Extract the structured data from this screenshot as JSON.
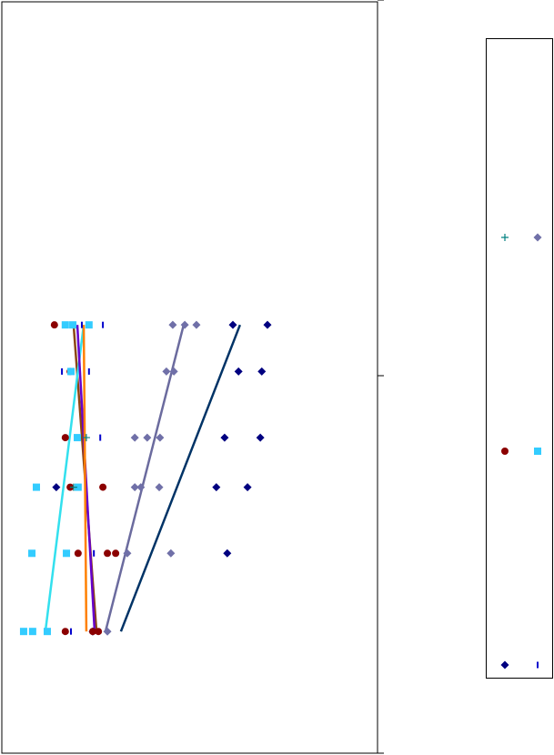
{
  "chart_data": {
    "type": "scatter",
    "xlim": [
      0,
      100
    ],
    "ylim": [
      0,
      100
    ],
    "series": [
      {
        "color": "#000080",
        "marker": "diamond",
        "x": [
          24.2,
          60.0,
          14.5,
          57.1,
          65.4,
          59.3,
          68.8,
          63.0,
          69.2,
          61.5,
          70.7
        ],
        "values": [
          16.2,
          26.6,
          35.4,
          35.4,
          35.4,
          42.0,
          42.0,
          50.8,
          50.8,
          57.0,
          57.0
        ],
        "trend_color": "#003366",
        "trend_x": [
          31.7,
          63.4
        ],
        "trend_y": [
          16.2,
          57.0
        ]
      },
      {
        "color": "#7070a8",
        "marker": "diamond",
        "x": [
          28.1,
          33.4,
          45.0,
          35.4,
          37.0,
          41.9,
          35.4,
          38.7,
          42.1,
          43.8,
          45.8,
          45.5,
          48.7,
          51.8
        ],
        "values": [
          16.2,
          26.6,
          26.6,
          35.4,
          35.4,
          35.4,
          42.0,
          42.0,
          42.0,
          50.8,
          50.8,
          57.0,
          57.0,
          57.0
        ],
        "trend_color": "#6b6b9e",
        "trend_x": [
          27.6,
          48.4
        ],
        "trend_y": [
          16.2,
          57.0
        ]
      },
      {
        "color": "#8b0000",
        "marker": "circle",
        "x": [
          16.9,
          24.2,
          25.7,
          20.3,
          28.1,
          30.3,
          18.2,
          26.9,
          16.9,
          18.2,
          14.0
        ],
        "values": [
          16.2,
          16.2,
          16.2,
          26.6,
          26.6,
          26.6,
          35.4,
          35.4,
          42.0,
          50.8,
          57.0
        ],
        "trend_color": "#8b4513",
        "trend_x": [
          25.2,
          19.1
        ],
        "trend_y": [
          16.2,
          57.0
        ]
      },
      {
        "color": "#33ccff",
        "marker": "square",
        "x": [
          5.8,
          8.2,
          12.1,
          8.0,
          17.2,
          9.2,
          20.3,
          20.1,
          18.4,
          16.9,
          18.9,
          23.2
        ],
        "values": [
          16.2,
          16.2,
          16.2,
          26.6,
          26.6,
          35.4,
          35.4,
          42.0,
          50.8,
          57.0,
          57.0,
          57.0
        ],
        "trend_color": "#33e0ee",
        "trend_x": [
          11.6,
          21.8
        ],
        "trend_y": [
          16.2,
          57.0
        ]
      },
      {
        "color": "#0000cc",
        "marker": "dash",
        "x": [
          18.4,
          24.5,
          26.2,
          16.0,
          23.2,
          21.3,
          26.9
        ],
        "values": [
          16.2,
          26.6,
          42.0,
          50.8,
          50.8,
          57.0,
          57.0
        ],
        "trend_color": "#6600cc",
        "trend_x": [
          24.7,
          20.1
        ],
        "trend_y": [
          16.2,
          57.0
        ]
      },
      {
        "color": "#008080",
        "marker": "plus",
        "x": [
          19.1,
          22.5
        ],
        "values": [
          35.4,
          42.0
        ],
        "trend_color": "#ff8000",
        "trend_x": [
          22.5,
          21.8
        ],
        "trend_y": [
          16.2,
          57.0
        ]
      }
    ]
  }
}
